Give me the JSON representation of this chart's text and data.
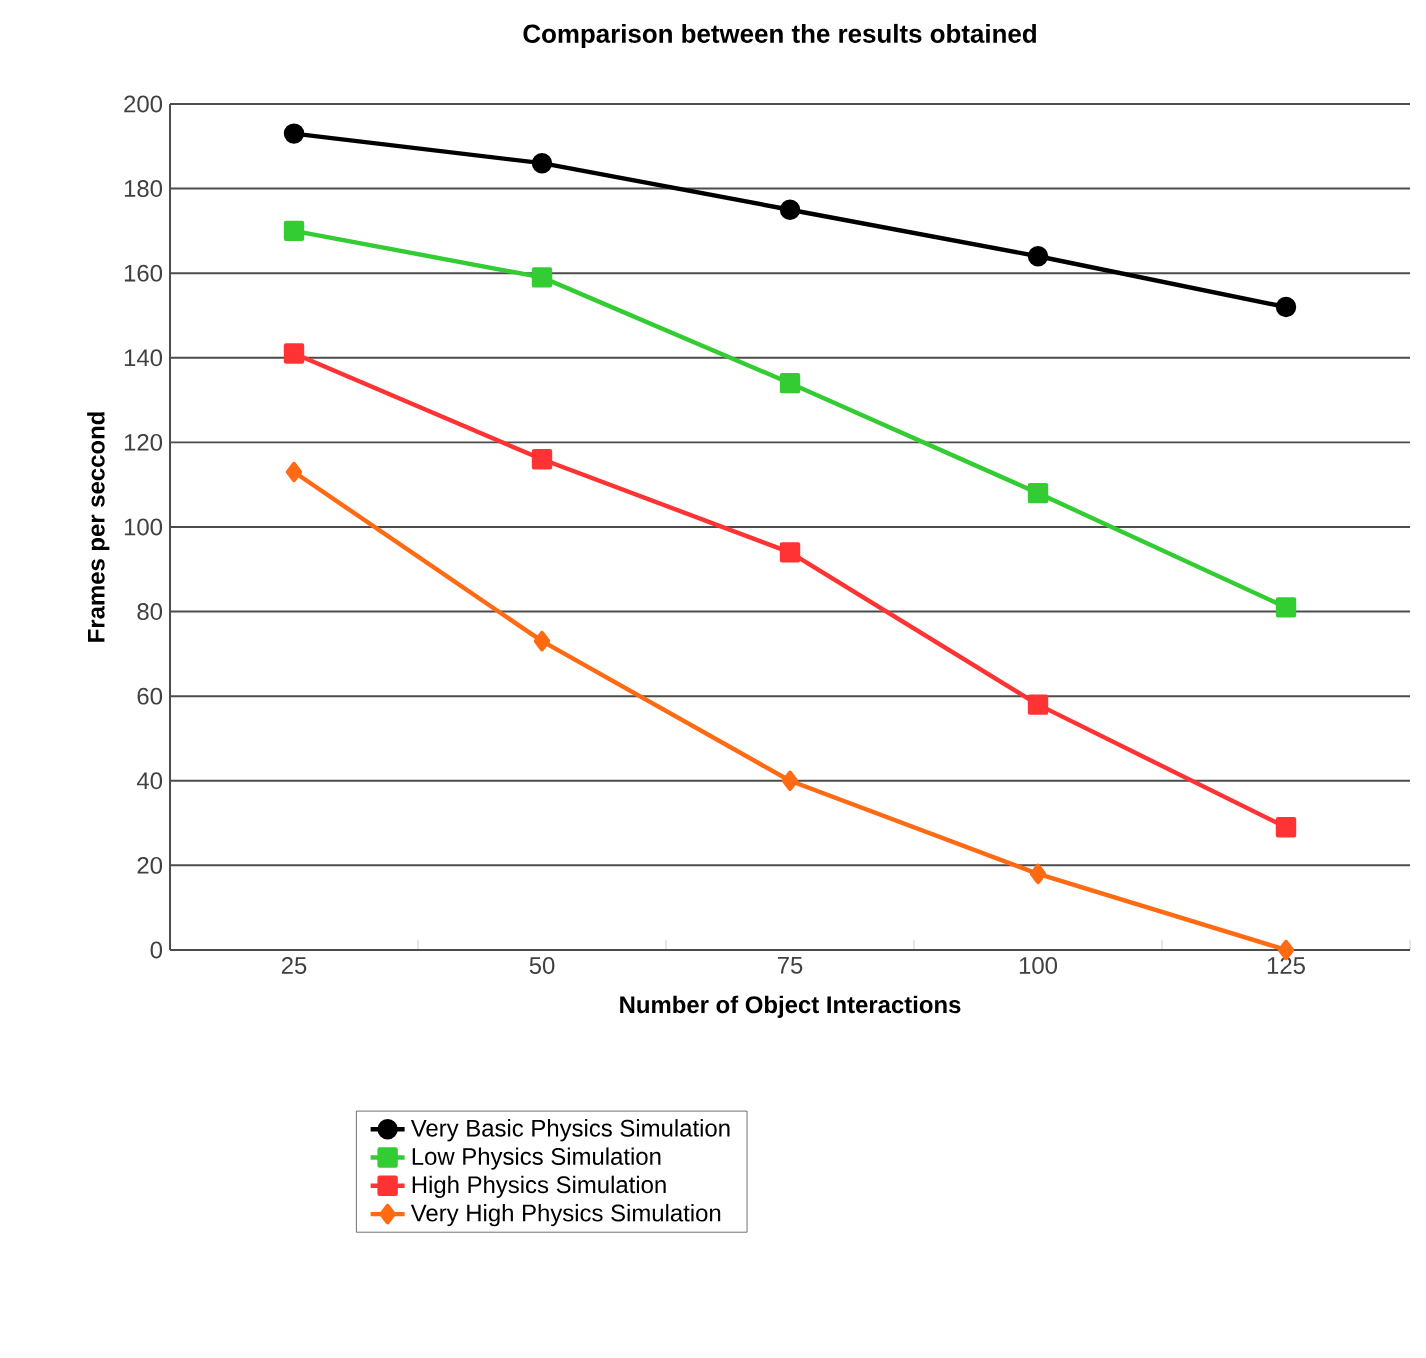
{
  "chart_data": {
    "type": "line",
    "title": "Comparison between the results obtained",
    "xlabel": "Number of Object Interactions",
    "ylabel": "Frames per seccond",
    "categories": [
      "25",
      "50",
      "75",
      "100",
      "125"
    ],
    "series": [
      {
        "name": "Very Basic Physics Simulation",
        "color": "#000000",
        "marker": "circle",
        "values": [
          193,
          186,
          175,
          164,
          152
        ]
      },
      {
        "name": "Low Physics Simulation",
        "color": "#33cc33",
        "marker": "square",
        "values": [
          170,
          159,
          134,
          108,
          81
        ]
      },
      {
        "name": "High Physics Simulation",
        "color": "#ff3333",
        "marker": "square",
        "values": [
          141,
          116,
          94,
          58,
          29
        ]
      },
      {
        "name": "Very High Physics Simulation",
        "color": "#ff6a13",
        "marker": "diamond",
        "values": [
          113,
          73,
          40,
          18,
          0
        ]
      }
    ],
    "ylim": [
      0,
      200
    ],
    "yticks": [
      0,
      20,
      40,
      60,
      80,
      100,
      120,
      140,
      160,
      180,
      200
    ],
    "grid": "y",
    "legend": "bottom",
    "line_style": "solid"
  }
}
